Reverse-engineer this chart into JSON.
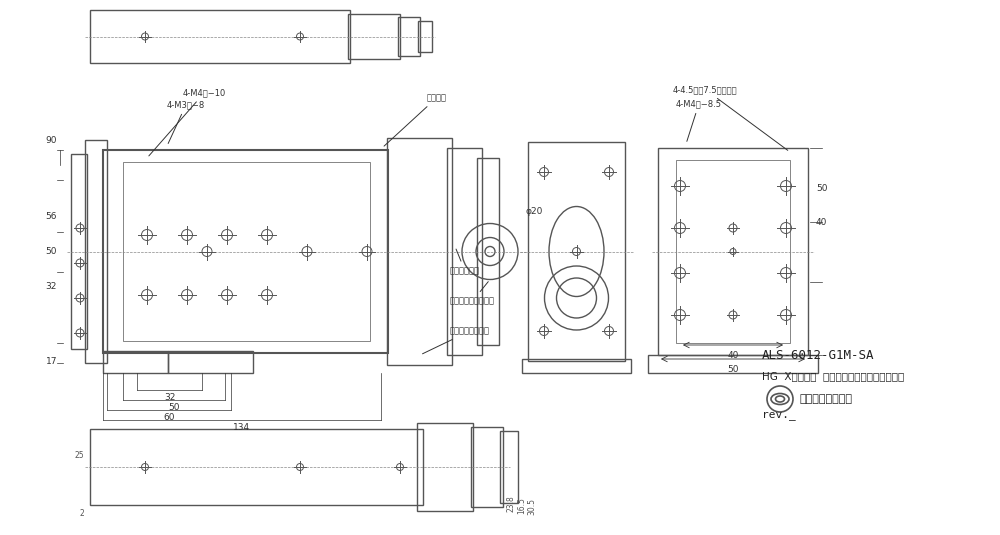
{
  "bg_color": "#ffffff",
  "line_color": "#555555",
  "thin_color": "#888888",
  "title_text1": "ALS-6012-G1M-SA",
  "title_text2": "HG  Xステージ  ボールねじ仕様、スケール付",
  "company": "中央精機株式会社",
  "rev": "rev._",
  "label_m4_10": "4-M4深−10",
  "label_m3_8": "4-M3深−8",
  "label_connector": "コネクタ",
  "label_manual": "手動ハンドル",
  "label_step": "ステッピングモータ",
  "label_cable": "スケールケーブル",
  "label_m4_85": "4-M4深−8.5",
  "label_m4_45": "4-4.5吉、7.5深サラメ",
  "label_phi20": "φ20",
  "dim_32": "32",
  "dim_50": "50",
  "dim_60": "60",
  "dim_134": "134",
  "dim_17": "17",
  "dim_40a": "40",
  "dim_50c": "50",
  "dim_25": "25",
  "dim_2": "2",
  "dim_30_5": "30.5",
  "dim_16_5": "16.5",
  "dim_23_8": "23.8"
}
